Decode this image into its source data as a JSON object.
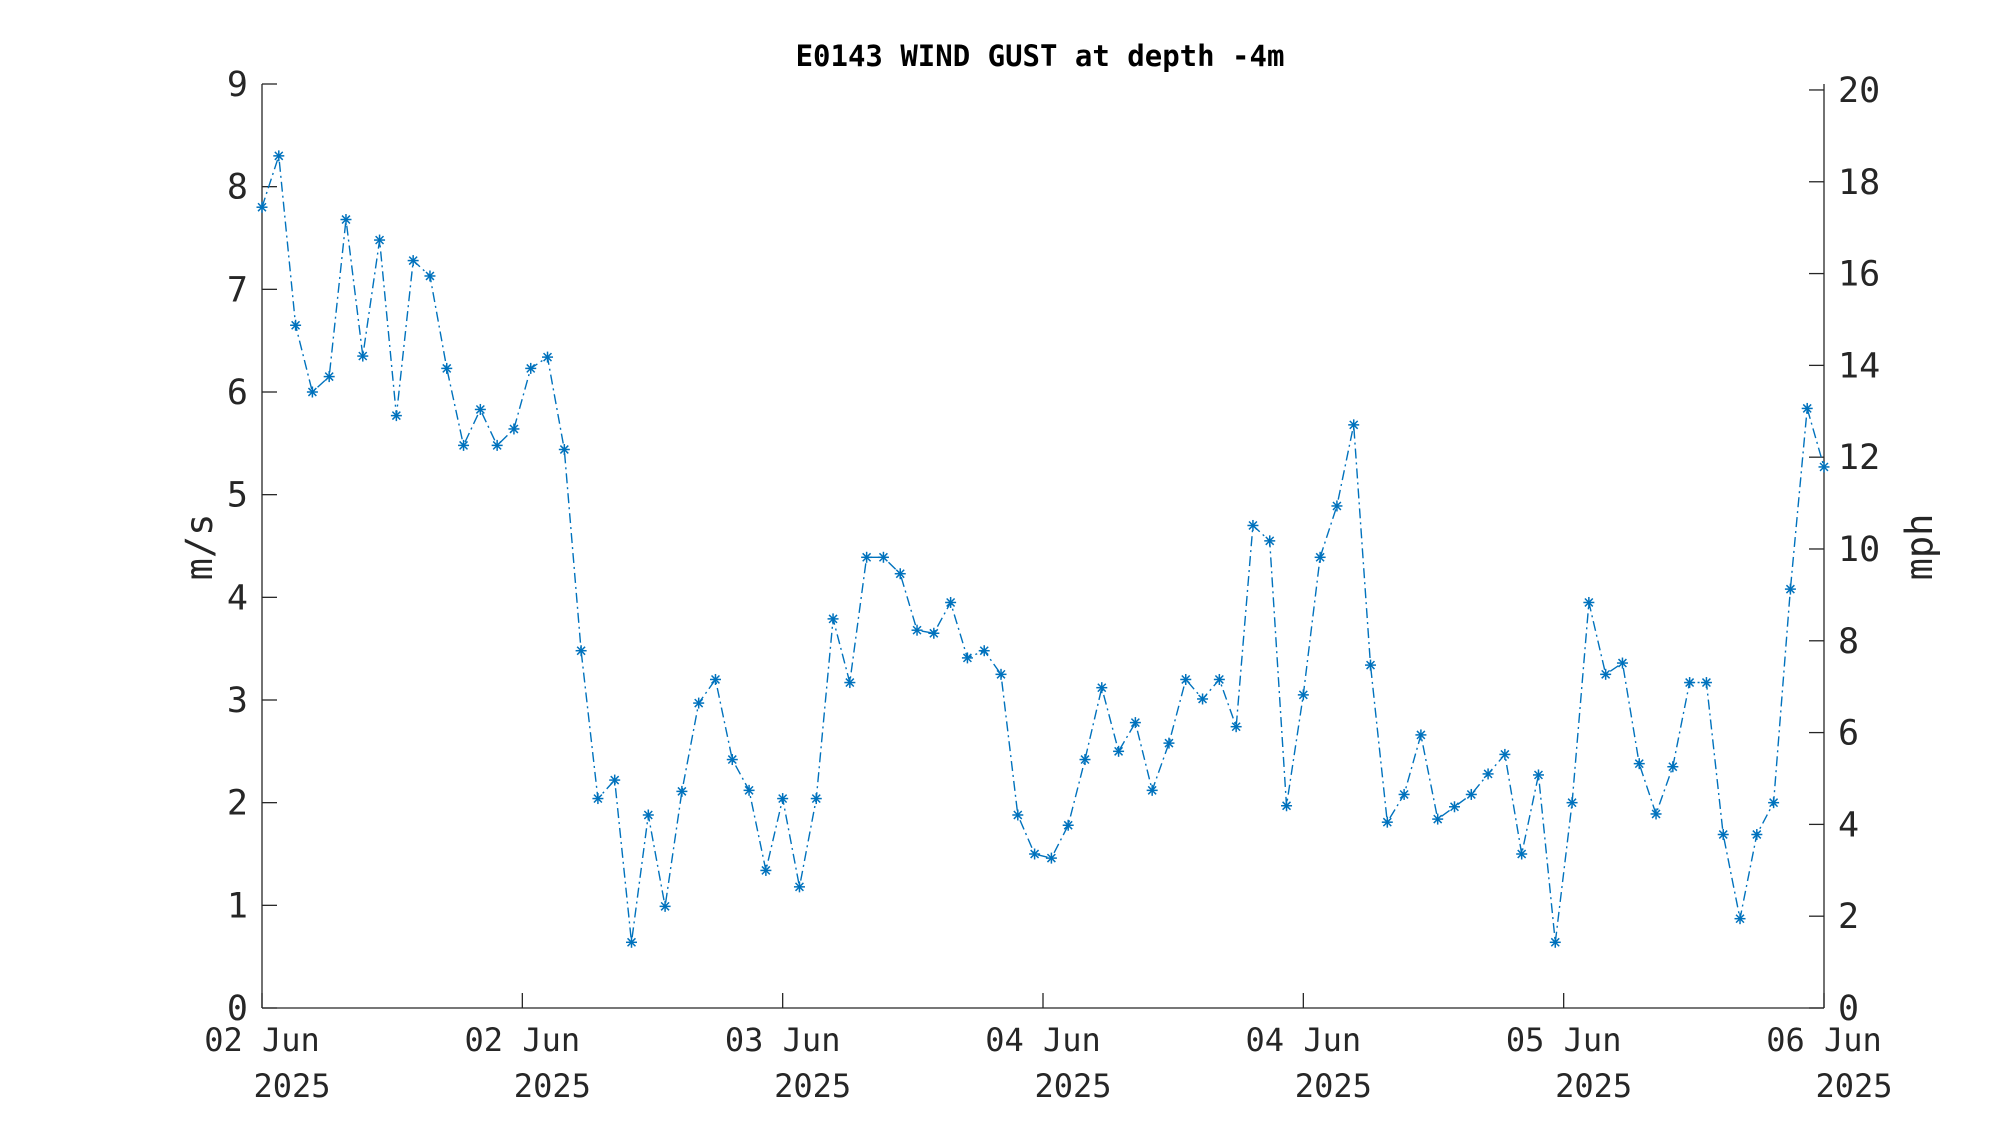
{
  "chart_data": {
    "type": "line",
    "title": "E0143 WIND GUST at depth -4m",
    "ylabel": "m/s",
    "y2label": "mph",
    "ylim": [
      0,
      9
    ],
    "y2lim": [
      0,
      20.13
    ],
    "yticks": [
      "0",
      "1",
      "2",
      "3",
      "4",
      "5",
      "6",
      "7",
      "8",
      "9"
    ],
    "y2ticks": [
      "0",
      "2",
      "4",
      "6",
      "8",
      "10",
      "12",
      "14",
      "16",
      "18",
      "20"
    ],
    "xticks": [
      {
        "line1": "02 Jun",
        "line2": "2025"
      },
      {
        "line1": "02 Jun",
        "line2": "2025"
      },
      {
        "line1": "03 Jun",
        "line2": "2025"
      },
      {
        "line1": "04 Jun",
        "line2": "2025"
      },
      {
        "line1": "04 Jun",
        "line2": "2025"
      },
      {
        "line1": "05 Jun",
        "line2": "2025"
      },
      {
        "line1": "06 Jun",
        "line2": "2025"
      }
    ],
    "line_style": "dash-dot",
    "marker": "asterisk",
    "series_color": "#0072BD",
    "grid": false,
    "values": [
      7.8,
      8.3,
      6.65,
      6.0,
      6.15,
      7.68,
      6.35,
      7.48,
      5.77,
      7.28,
      7.13,
      6.23,
      5.48,
      5.83,
      5.48,
      5.64,
      6.23,
      6.34,
      5.44,
      3.48,
      2.04,
      2.22,
      0.64,
      1.88,
      0.99,
      2.11,
      2.97,
      3.2,
      2.42,
      2.12,
      1.34,
      2.04,
      1.18,
      2.04,
      3.79,
      3.17,
      4.39,
      4.39,
      4.23,
      3.68,
      3.65,
      3.95,
      3.41,
      3.48,
      3.25,
      1.88,
      1.5,
      1.46,
      1.78,
      2.42,
      3.12,
      2.5,
      2.78,
      2.12,
      2.58,
      3.2,
      3.01,
      3.2,
      2.74,
      4.7,
      4.55,
      1.97,
      3.05,
      4.39,
      4.89,
      5.68,
      3.34,
      1.81,
      2.08,
      2.66,
      1.84,
      1.96,
      2.08,
      2.28,
      2.47,
      1.5,
      2.27,
      0.64,
      2.0,
      3.95,
      3.25,
      3.36,
      2.38,
      1.89,
      2.35,
      3.17,
      3.17,
      1.69,
      0.87,
      1.69,
      2.0,
      4.08,
      5.84,
      5.27
    ]
  }
}
